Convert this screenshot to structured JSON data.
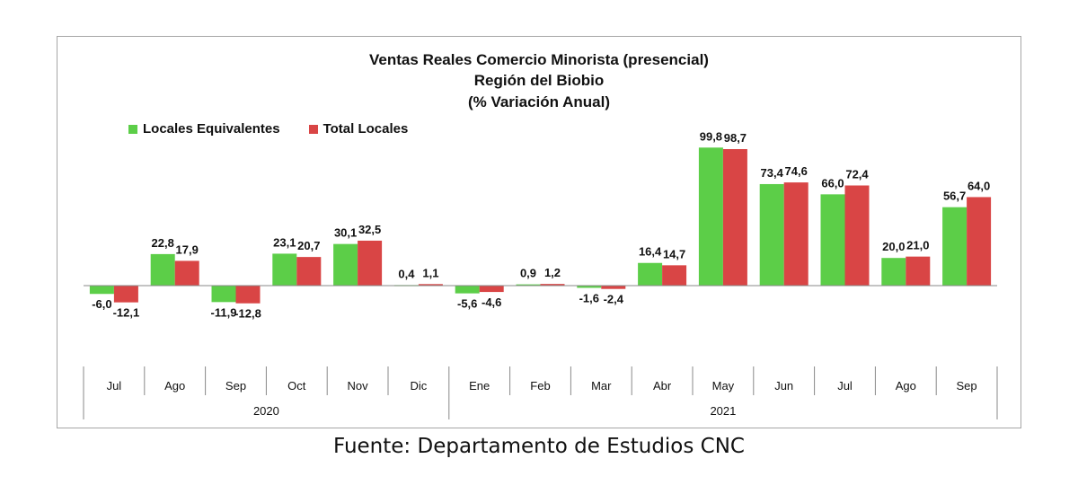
{
  "chart_data": {
    "type": "bar",
    "title": "Ventas Reales Comercio Minorista (presencial)",
    "subtitle": "Región del Biobio",
    "subtitle2": "(% Variación Anual)",
    "categories": [
      "Jul",
      "Ago",
      "Sep",
      "Oct",
      "Nov",
      "Dic",
      "Ene",
      "Feb",
      "Mar",
      "Abr",
      "May",
      "Jun",
      "Jul",
      "Ago",
      "Sep"
    ],
    "groups": [
      {
        "label": "2020",
        "from": 0,
        "to": 5
      },
      {
        "label": "2021",
        "from": 6,
        "to": 14
      }
    ],
    "series": [
      {
        "name": "Locales Equivalentes",
        "color": "#5cce48",
        "values": [
          -6.0,
          22.8,
          -11.9,
          23.1,
          30.1,
          0.4,
          -5.6,
          0.9,
          -1.6,
          16.4,
          99.8,
          73.4,
          66.0,
          20.0,
          56.7
        ],
        "labels": [
          "-6,0",
          "22,8",
          "-11,9",
          "23,1",
          "30,1",
          "0,4",
          "-5,6",
          "0,9",
          "-1,6",
          "16,4",
          "99,8",
          "73,4",
          "66,0",
          "20,0",
          "56,7"
        ]
      },
      {
        "name": "Total Locales",
        "color": "#d94545",
        "values": [
          -12.1,
          17.9,
          -12.8,
          20.7,
          32.5,
          1.1,
          -4.6,
          1.2,
          -2.4,
          14.7,
          98.7,
          74.6,
          72.4,
          21.0,
          64.0
        ],
        "labels": [
          "-12,1",
          "17,9",
          "-12,8",
          "20,7",
          "32,5",
          "1,1",
          "-4,6",
          "1,2",
          "-2,4",
          "14,7",
          "98,7",
          "74,6",
          "72,4",
          "21,0",
          "64,0"
        ]
      }
    ],
    "legend_position": "top-left",
    "grid": false,
    "ylim": [
      -35,
      110
    ]
  },
  "source": "Fuente: Departamento de Estudios CNC"
}
